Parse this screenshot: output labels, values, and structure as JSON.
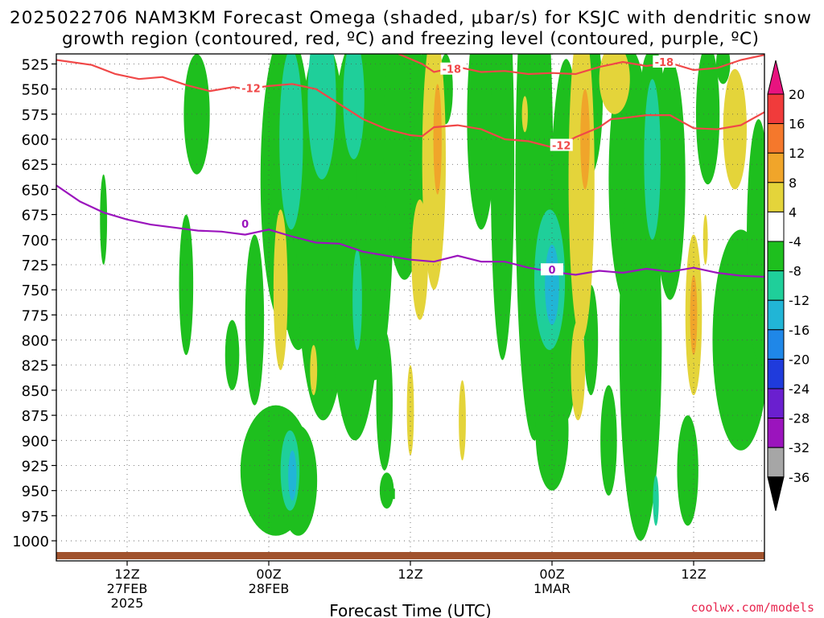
{
  "chart_data": {
    "type": "heatmap",
    "title_line1": "2025022706 NAM3KM Forecast Omega (shaded, μbar/s) for KSJC with dendritic snow",
    "title_line2": "growth region (contoured, red, ºC) and freezing level (contoured, purple, ºC)",
    "xlabel": "Forecast Time (UTC)",
    "credit": "coolwx.com/models",
    "x_ticks": [
      {
        "label": "12Z",
        "sub": "27FEB",
        "sub2": "2025",
        "hour": 6
      },
      {
        "label": "00Z",
        "sub": "28FEB",
        "hour": 18
      },
      {
        "label": "12Z",
        "sub": "",
        "hour": 30
      },
      {
        "label": "00Z",
        "sub": "1MAR",
        "hour": 42
      },
      {
        "label": "12Z",
        "sub": "",
        "hour": 54
      }
    ],
    "x_range_hours": [
      0,
      60
    ],
    "y_ticks": [
      525,
      550,
      575,
      600,
      625,
      650,
      675,
      700,
      725,
      750,
      775,
      800,
      825,
      850,
      875,
      900,
      925,
      950,
      975,
      1000
    ],
    "y_range_hPa": [
      515,
      1020
    ],
    "colorbar": {
      "labels": [
        "20",
        "16",
        "12",
        "8",
        "4",
        "-4",
        "-8",
        "-12",
        "-16",
        "-20",
        "-24",
        "-28",
        "-32",
        "-36"
      ],
      "colors": [
        "#e8137f",
        "#f03b3b",
        "#f5782c",
        "#f0a52a",
        "#e4d43a",
        "#ffffff",
        "#1ebf1e",
        "#1fcf9a",
        "#21b5d6",
        "#1f87e8",
        "#1f3bdc",
        "#6a1fcf",
        "#9b14bd",
        "#a6a6a6",
        "#000000"
      ]
    },
    "colors": {
      "green": "#1ebf1e",
      "teal": "#1fcf9a",
      "cyan": "#21b5d6",
      "yellow": "#e4d43a",
      "orange": "#f0a52a",
      "dendritic": "#f04848",
      "freezing": "#9b14bd",
      "terrain": "#a0522d"
    },
    "dendritic_contour_labels": [
      "-12",
      "-18",
      "-12",
      "-18"
    ],
    "freezing_contour_labels": [
      "0",
      "0"
    ],
    "dgz_top": [
      [
        0,
        521
      ],
      [
        3,
        526
      ],
      [
        5,
        535
      ],
      [
        7,
        540
      ],
      [
        9,
        538
      ],
      [
        11,
        546
      ],
      [
        13,
        552
      ],
      [
        15,
        548
      ],
      [
        16,
        550
      ],
      [
        18,
        547
      ],
      [
        20,
        545
      ],
      [
        22,
        550
      ],
      [
        24,
        565
      ],
      [
        26,
        580
      ],
      [
        28,
        590
      ],
      [
        30,
        596
      ],
      [
        31,
        597
      ],
      [
        32,
        588
      ],
      [
        34,
        586
      ],
      [
        36,
        590
      ],
      [
        38,
        600
      ],
      [
        40,
        602
      ],
      [
        42,
        608
      ],
      [
        43,
        604
      ],
      [
        44,
        598
      ],
      [
        46,
        588
      ],
      [
        47,
        580
      ],
      [
        48,
        579
      ],
      [
        50,
        576
      ],
      [
        52,
        576
      ],
      [
        54,
        589
      ],
      [
        56,
        590
      ],
      [
        58,
        586
      ],
      [
        60,
        573
      ]
    ],
    "dgz_bot": [
      [
        29,
        515
      ],
      [
        31,
        525
      ],
      [
        32,
        533
      ],
      [
        34,
        528
      ],
      [
        36,
        533
      ],
      [
        38,
        532
      ],
      [
        40,
        535
      ],
      [
        42,
        534
      ],
      [
        44,
        535
      ],
      [
        46,
        528
      ],
      [
        48,
        523
      ],
      [
        50,
        527
      ],
      [
        52,
        524
      ],
      [
        54,
        531
      ],
      [
        56,
        529
      ],
      [
        58,
        521
      ],
      [
        60,
        516
      ]
    ],
    "freezing": [
      [
        0,
        646
      ],
      [
        2,
        662
      ],
      [
        4,
        673
      ],
      [
        6,
        680
      ],
      [
        8,
        685
      ],
      [
        10,
        688
      ],
      [
        12,
        691
      ],
      [
        14,
        692
      ],
      [
        16,
        695
      ],
      [
        18,
        690
      ],
      [
        20,
        697
      ],
      [
        22,
        703
      ],
      [
        24,
        704
      ],
      [
        26,
        712
      ],
      [
        28,
        716
      ],
      [
        30,
        720
      ],
      [
        32,
        722
      ],
      [
        34,
        716
      ],
      [
        36,
        722
      ],
      [
        38,
        722
      ],
      [
        40,
        728
      ],
      [
        42,
        732
      ],
      [
        44,
        735
      ],
      [
        46,
        731
      ],
      [
        48,
        733
      ],
      [
        50,
        729
      ],
      [
        52,
        732
      ],
      [
        54,
        728
      ],
      [
        56,
        733
      ],
      [
        58,
        736
      ],
      [
        60,
        737
      ]
    ]
  }
}
